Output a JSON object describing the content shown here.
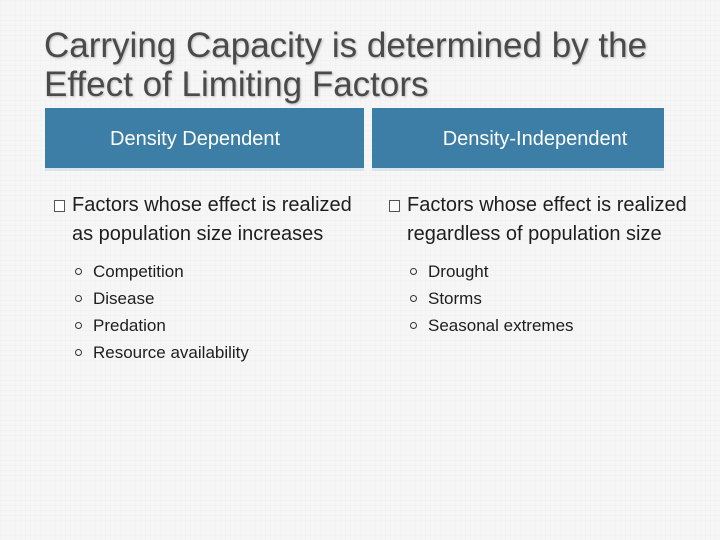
{
  "title": "Carrying Capacity is determined by the Effect of Limiting Factors",
  "left": {
    "header": "Density Dependent",
    "bullet": "Factors whose effect is realized as population size increases",
    "items": [
      "Competition",
      "Disease",
      "Predation",
      "Resource availability"
    ]
  },
  "right": {
    "header": "Density-Independent",
    "bullet": "Factors whose effect is realized regardless of population size",
    "items": [
      "Drought",
      "Storms",
      "Seasonal extremes"
    ]
  }
}
